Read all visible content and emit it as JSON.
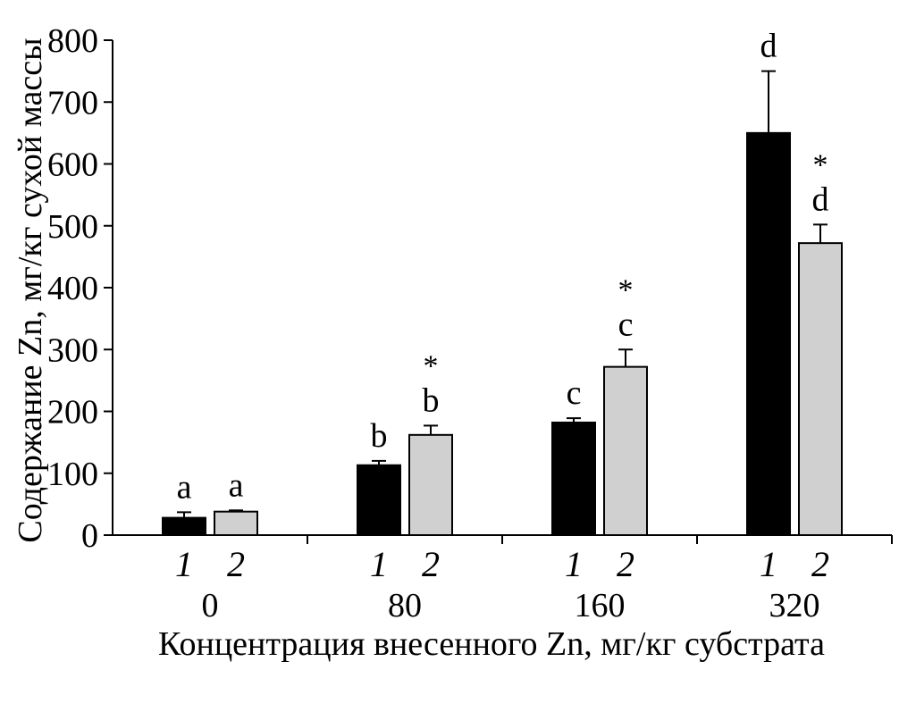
{
  "chart_data": {
    "type": "bar",
    "title": "",
    "xlabel": "Концентрация внесенного Zn, мг/кг субстрата",
    "ylabel": "Содержание Zn, мг/кг сухой массы",
    "ylim": [
      0,
      800
    ],
    "yticks": [
      0,
      100,
      200,
      300,
      400,
      500,
      600,
      700,
      800
    ],
    "categories": [
      "0",
      "80",
      "160",
      "320"
    ],
    "sub_labels": [
      "1",
      "2"
    ],
    "series": [
      {
        "label": "1",
        "color": "#000000",
        "values": [
          28,
          113,
          182,
          650
        ],
        "errors": [
          9,
          7,
          7,
          100
        ],
        "letters": [
          "a",
          "b",
          "c",
          "d"
        ],
        "stars": [
          false,
          false,
          false,
          false
        ]
      },
      {
        "label": "2",
        "color": "#d0d0d0",
        "values": [
          38,
          162,
          272,
          472
        ],
        "errors": [
          2,
          15,
          28,
          30
        ],
        "letters": [
          "a",
          "b",
          "c",
          "d"
        ],
        "stars": [
          false,
          true,
          true,
          true
        ]
      }
    ],
    "star_symbol": "*",
    "grid": false,
    "legend": "none"
  }
}
